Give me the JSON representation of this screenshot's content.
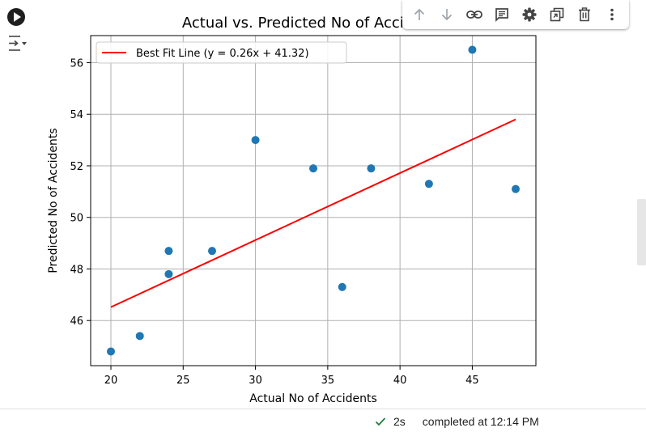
{
  "cell": {
    "status": {
      "duration": "2s",
      "text": "completed at 12:14 PM"
    }
  },
  "toolbar": {
    "icons": [
      "arrow-up-icon",
      "arrow-down-icon",
      "link-icon",
      "comment-icon",
      "gear-icon",
      "mirror-cell-icon",
      "trash-icon",
      "more-vert-icon"
    ]
  },
  "colors": {
    "points": "#1f77b4",
    "fit_line": "#ff0000",
    "grid": "#b0b0b0"
  },
  "chart_data": {
    "type": "scatter",
    "title": "Actual vs. Predicted No of Accidents",
    "xlabel": "Actual No of Accidents",
    "ylabel": "Predicted No of Accidents",
    "xlim": [
      18.6,
      49.4
    ],
    "ylim": [
      44.25,
      57.05
    ],
    "xticks": [
      20,
      25,
      30,
      35,
      40,
      45
    ],
    "yticks": [
      46,
      48,
      50,
      52,
      54,
      56
    ],
    "grid": true,
    "legend_position": "upper-left",
    "points": [
      {
        "x": 20,
        "y": 44.8
      },
      {
        "x": 22,
        "y": 45.4
      },
      {
        "x": 24,
        "y": 47.8
      },
      {
        "x": 24,
        "y": 48.7
      },
      {
        "x": 27,
        "y": 48.7
      },
      {
        "x": 30,
        "y": 53.0
      },
      {
        "x": 34,
        "y": 51.9
      },
      {
        "x": 36,
        "y": 47.3
      },
      {
        "x": 38,
        "y": 51.9
      },
      {
        "x": 42,
        "y": 51.3
      },
      {
        "x": 45,
        "y": 56.5
      },
      {
        "x": 48,
        "y": 51.1
      }
    ],
    "fit_line": {
      "label": "Best Fit Line (y = 0.26x + 41.32)",
      "slope": 0.26,
      "intercept": 41.32,
      "x_range": [
        20,
        48
      ]
    }
  }
}
